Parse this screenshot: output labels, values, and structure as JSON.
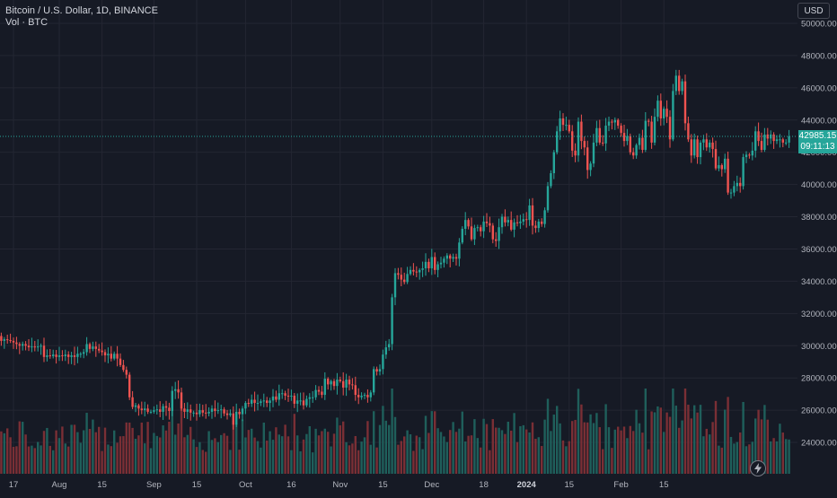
{
  "legend": {
    "symbol_line": "Bitcoin / U.S. Dollar, 1D, BINANCE",
    "volume_line": "Vol · BTC"
  },
  "toolbar": {
    "currency_label": "USD"
  },
  "last_price": {
    "price": "42985.15",
    "countdown": "09:11:13"
  },
  "icons": {
    "bolt": "lightning-icon"
  },
  "colors": {
    "background": "#161a25",
    "up": "#26a69a",
    "down": "#ef5350",
    "up_volume": "#1f5f5b",
    "down_volume": "#7a2f35",
    "text": "#d1d4dc"
  },
  "chart_data": {
    "type": "candlestick",
    "title": "Bitcoin / U.S. Dollar, 1D, BINANCE",
    "ylabel": "USD",
    "ylim": [
      22500,
      51000
    ],
    "y_ticks": [
      "24000.00",
      "26000.00",
      "28000.00",
      "30000.00",
      "32000.00",
      "34000.00",
      "36000.00",
      "38000.00",
      "40000.00",
      "42000.00",
      "44000.00",
      "46000.00",
      "48000.00",
      "50000.00"
    ],
    "x_ticks": [
      "17",
      "Aug",
      "15",
      "Sep",
      "15",
      "Oct",
      "16",
      "Nov",
      "15",
      "Dec",
      "18",
      "2024",
      "15",
      "Feb",
      "15"
    ],
    "start_date": "2023-07-12",
    "last_price": 42985.15,
    "closes": [
      30600,
      30300,
      30400,
      30350,
      30300,
      30200,
      30100,
      30000,
      30100,
      30000,
      29900,
      29950,
      29900,
      29950,
      30000,
      29300,
      29400,
      29350,
      29450,
      29300,
      29400,
      29350,
      29450,
      29300,
      29400,
      29300,
      29500,
      29500,
      29600,
      30100,
      29800,
      29950,
      29800,
      29700,
      29600,
      29400,
      29500,
      29200,
      29500,
      29200,
      28800,
      28500,
      28200,
      26800,
      26200,
      26300,
      26100,
      26000,
      26100,
      25900,
      25900,
      26000,
      26050,
      25900,
      26250,
      26150,
      25950,
      27200,
      27300,
      27100,
      26100,
      25900,
      26050,
      25850,
      25850,
      25750,
      26000,
      25850,
      25800,
      25900,
      26100,
      25950,
      26000,
      26050,
      25800,
      25700,
      25800,
      25100,
      25900,
      25750,
      26100,
      26450,
      26400,
      26650,
      26450,
      26450,
      26550,
      26600,
      26450,
      26600,
      26850,
      26650,
      27050,
      27050,
      26900,
      26850,
      26900,
      26400,
      26600,
      26600,
      26300,
      26700,
      26800,
      26800,
      27250,
      27150,
      26950,
      27950,
      27600,
      27800,
      27500,
      27900,
      27800,
      27400,
      27900,
      27600,
      27550,
      26950,
      26800,
      26900,
      26950,
      26800,
      27100,
      28550,
      28400,
      28550,
      29450,
      29900,
      30100,
      33000,
      34500,
      34400,
      34100,
      33950,
      34450,
      34700,
      34600,
      34550,
      34700,
      34800,
      35200,
      34800,
      35500,
      34700,
      35050,
      35150,
      35400,
      35600,
      35400,
      35500,
      35400,
      36400,
      37250,
      37800,
      37400,
      36600,
      37300,
      37350,
      37100,
      37700,
      37600,
      37450,
      36600,
      36500,
      37350,
      38000,
      37650,
      37800,
      37200,
      37650,
      37600,
      37700,
      37850,
      37800,
      38700,
      37450,
      37300,
      37700,
      37550,
      38400,
      39900,
      40700,
      42000,
      43300,
      44100,
      43700,
      43700,
      43300,
      42100,
      41800,
      43900,
      42700,
      42300,
      40900,
      41300,
      42600,
      43500,
      42600,
      42550,
      43650,
      43900,
      43850,
      44000,
      43650,
      43200,
      42700,
      43000,
      42000,
      41800,
      42450,
      42900,
      42150,
      43950,
      43900,
      42600,
      44200,
      45200,
      44100,
      44700,
      44200,
      42800,
      45800,
      46750,
      45800,
      46400,
      43800,
      42800,
      41800,
      42800,
      41700,
      42600,
      42800,
      42300,
      42600,
      42200,
      41000,
      41200,
      40950,
      41600,
      39500,
      39500,
      39900,
      40100,
      39900,
      41700,
      41850,
      41800,
      42100,
      43300,
      42700,
      42150,
      43100,
      42850,
      43100,
      42700,
      42800,
      42800,
      42600,
      42600,
      42985
    ]
  }
}
